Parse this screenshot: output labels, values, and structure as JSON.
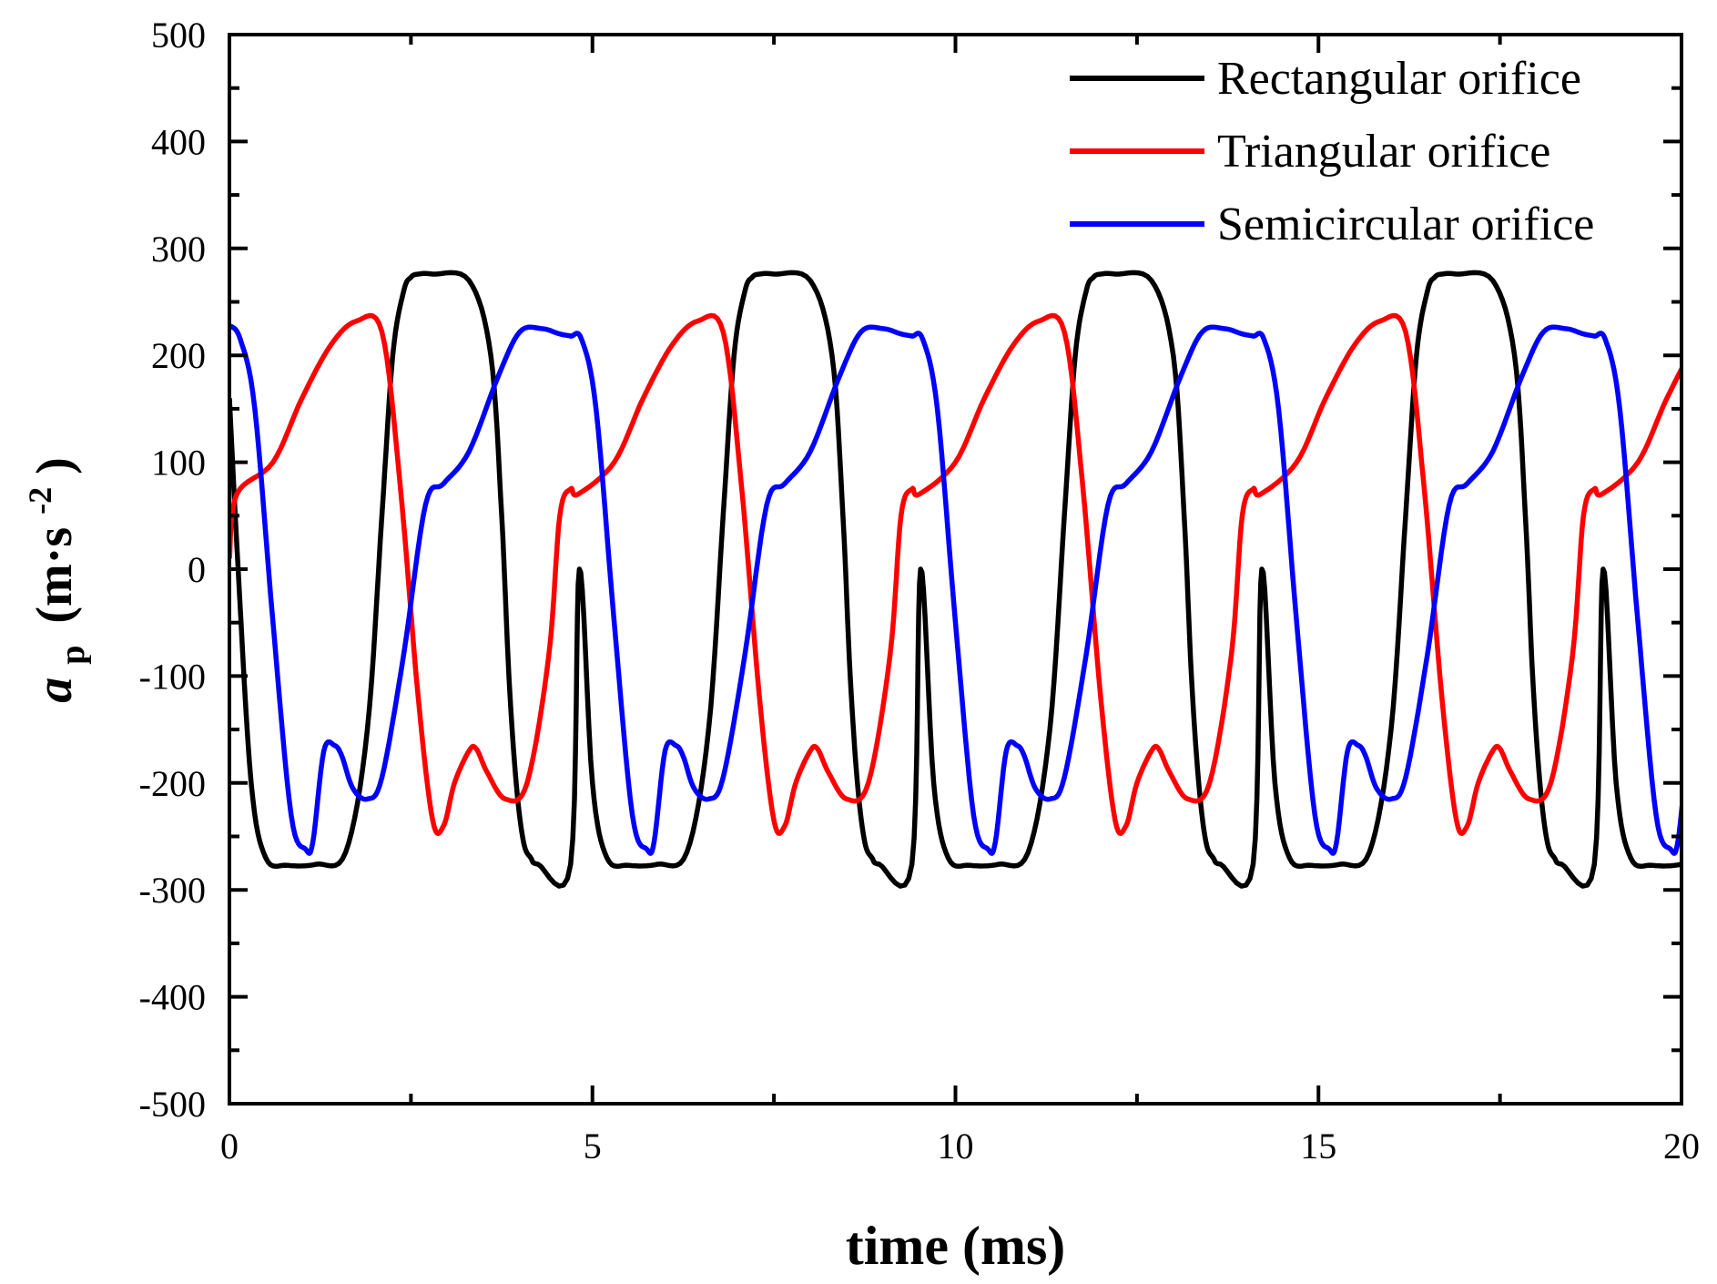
{
  "chart_data": {
    "type": "line",
    "title": "",
    "xlabel": "time (ms)",
    "ylabel": {
      "symbol": "a",
      "subscript": "p",
      "unit_open": "(m·s",
      "unit_exp": "-2",
      "unit_close": ")"
    },
    "xlim": [
      0,
      20
    ],
    "ylim": [
      -500,
      500
    ],
    "x_ticks": [
      0,
      5,
      10,
      15,
      20
    ],
    "x_tick_labels": [
      "0",
      "5",
      "10",
      "15",
      "20"
    ],
    "y_ticks": [
      -500,
      -400,
      -300,
      -200,
      -100,
      0,
      100,
      200,
      300,
      400,
      500
    ],
    "y_tick_labels": [
      "-500",
      "-400",
      "-300",
      "-200",
      "-100",
      "0",
      "100",
      "200",
      "300",
      "400",
      "500"
    ],
    "x_minor_step": 2.5,
    "y_minor_step": 50,
    "grid": false,
    "legend_position": "top-right",
    "period_ms": 4.7,
    "series": [
      {
        "name": "Rectangular orifice",
        "color": "#000000",
        "key_points": {
          "t": [
            0,
            0.12,
            0.3,
            0.5,
            0.8,
            1.2,
            1.6,
            1.9,
            2.1,
            2.25,
            2.4,
            2.5,
            2.6,
            2.8,
            3.3,
            3.6,
            3.75,
            3.85,
            3.95,
            4.05,
            4.15,
            4.25,
            4.7
          ],
          "a": [
            160,
            0,
            -200,
            -270,
            -277,
            -276,
            -265,
            -150,
            50,
            200,
            260,
            273,
            276,
            276,
            270,
            200,
            50,
            -100,
            -200,
            -255,
            -270,
            -276,
            -276
          ]
        }
      },
      {
        "name": "Triangular orifice",
        "color": "#ff0000",
        "key_points": {
          "t": [
            0,
            0.1,
            0.6,
            1.0,
            1.4,
            1.75,
            2.1,
            2.35,
            2.6,
            2.8,
            2.95,
            3.1,
            3.3,
            3.4,
            3.55,
            3.8,
            4.1,
            4.4,
            4.55,
            4.7
          ],
          "a": [
            10,
            70,
            100,
            160,
            210,
            232,
            222,
            80,
            -120,
            -235,
            -240,
            -200,
            -170,
            -168,
            -190,
            -215,
            -200,
            -80,
            50,
            75
          ]
        }
      },
      {
        "name": "Semicircular orifice",
        "color": "#0000ff",
        "key_points": {
          "t": [
            0,
            0.15,
            0.35,
            0.6,
            0.85,
            1.05,
            1.15,
            1.3,
            1.45,
            1.55,
            1.7,
            1.9,
            2.1,
            2.4,
            2.7,
            2.95,
            3.3,
            3.7,
            4.0,
            4.3,
            4.55,
            4.7
          ],
          "a": [
            228,
            215,
            150,
            -50,
            -230,
            -262,
            -255,
            -170,
            -165,
            -175,
            -205,
            -215,
            -195,
            -80,
            60,
            80,
            110,
            180,
            222,
            225,
            220,
            218
          ]
        }
      }
    ]
  }
}
